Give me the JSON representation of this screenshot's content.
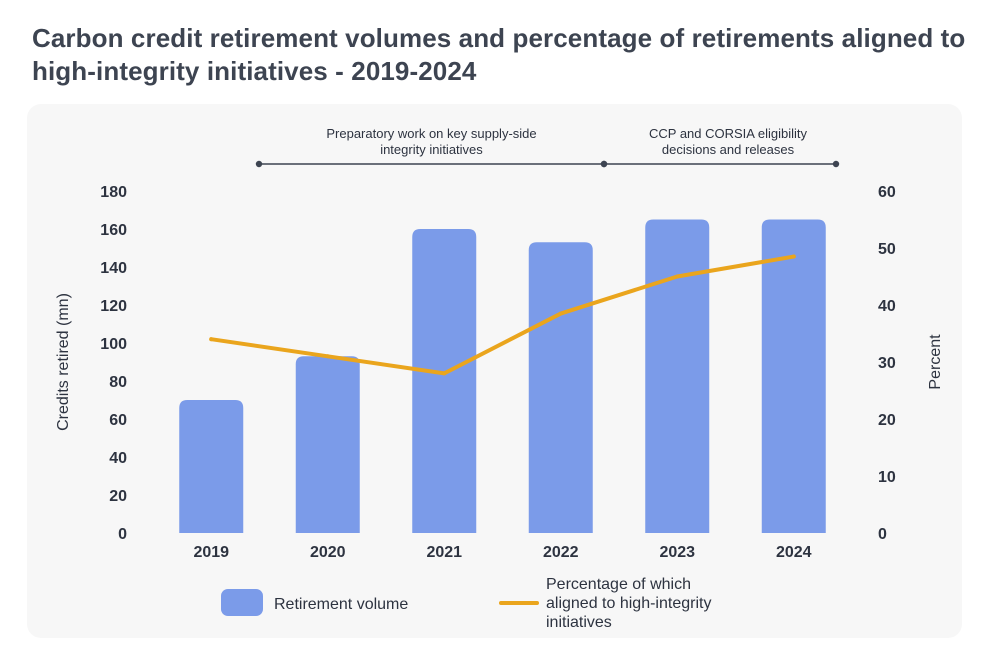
{
  "title": "Carbon credit retirement volumes and percentage of retirements aligned to high-integrity initiatives - 2019-2024",
  "chart_data": {
    "type": "bar+line",
    "categories": [
      "2019",
      "2020",
      "2021",
      "2022",
      "2023",
      "2024"
    ],
    "series": [
      {
        "name": "Retirement volume",
        "type": "bar",
        "axis": "left",
        "color": "#7b9be9",
        "values": [
          70,
          93,
          160,
          153,
          165,
          165
        ]
      },
      {
        "name": "Percentage of which aligned to high-integrity initiatives",
        "type": "line",
        "axis": "right",
        "color": "#eaa51d",
        "values": [
          34,
          31,
          28,
          38.5,
          45,
          48.5
        ]
      }
    ],
    "ylabel": "Credits retired (mn)",
    "ylim": [
      0,
      180
    ],
    "yticks": [
      "0",
      "20",
      "40",
      "60",
      "80",
      "100",
      "120",
      "140",
      "160",
      "180"
    ],
    "y2label": "Percent",
    "y2lim": [
      0,
      60
    ],
    "y2ticks": [
      "0",
      "10",
      "20",
      "30",
      "40",
      "50",
      "60"
    ],
    "annotations": [
      {
        "lines": [
          "Preparatory work on key supply-side",
          "integrity initiatives"
        ],
        "from": "2020",
        "to": "2022"
      },
      {
        "lines": [
          "CCP and CORSIA eligibility",
          "decisions and releases"
        ],
        "from": "2022",
        "to": "2024"
      }
    ],
    "legend": {
      "position": "bottom",
      "bar_label": "Retirement volume",
      "line_label_lines": [
        "Percentage of which",
        "aligned to high-integrity",
        "initiatives"
      ]
    }
  }
}
